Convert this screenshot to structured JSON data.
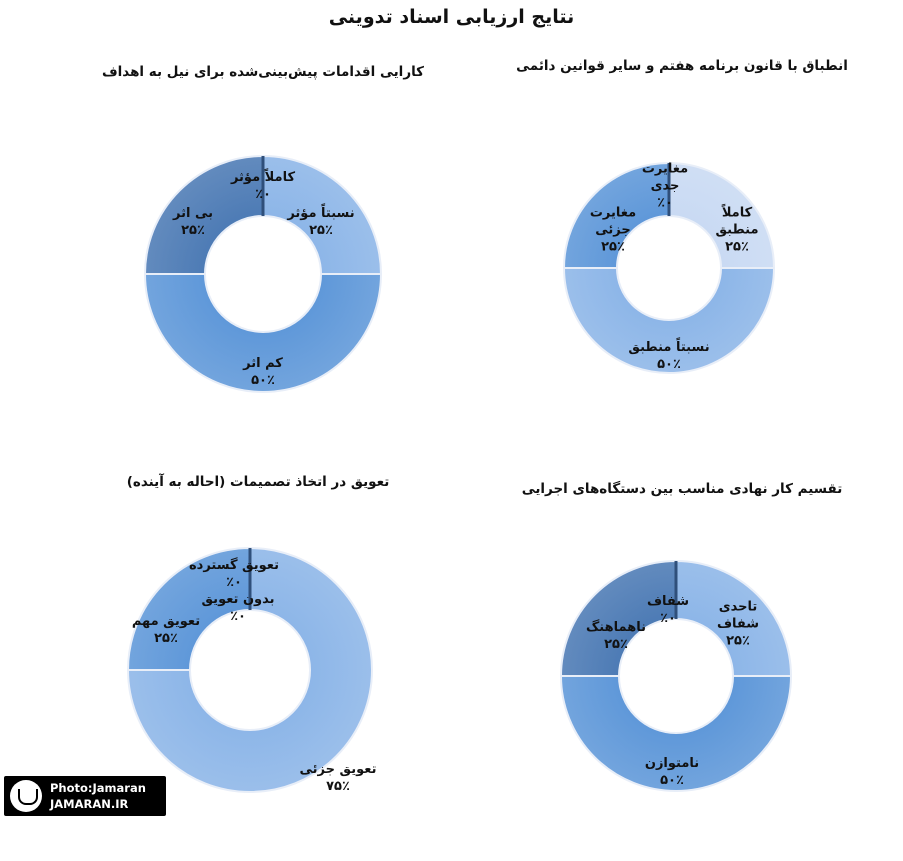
{
  "page": {
    "title": "نتایج ارزیابی اسناد تدوینی"
  },
  "watermark": {
    "line1": "Photo:Jamaran",
    "line2": "JAMARAN.IR"
  },
  "chart_data": [
    {
      "type": "pie",
      "variant": "donut",
      "title": "انطباق با قانون برنامه هفتم و سایر قوانین دائمی",
      "slices": [
        {
          "label": [
            "کاملاً",
            "منطبق"
          ],
          "percent_label": "۲۵٪",
          "value": 25,
          "color": "#c9daf3"
        },
        {
          "label": [
            "نسبتاً منطبق"
          ],
          "percent_label": "۵۰٪",
          "value": 50,
          "color": "#8db6e8"
        },
        {
          "label": [
            "مغایرت",
            "جزئی"
          ],
          "percent_label": "۲۵٪",
          "value": 25,
          "color": "#5f98d9"
        },
        {
          "label": [
            "مغایرت",
            "جدی"
          ],
          "percent_label": "٪۰",
          "value": 0,
          "color": "#2f4f7a"
        }
      ]
    },
    {
      "type": "pie",
      "variant": "donut",
      "title": "کارایی اقدامات پیش‌بینی‌شده برای نیل به اهداف",
      "slices": [
        {
          "label": [
            "نسبتاً مؤثر"
          ],
          "percent_label": "۲۵٪",
          "value": 25,
          "color": "#8db6e8"
        },
        {
          "label": [
            "کم اثر"
          ],
          "percent_label": "۵۰٪",
          "value": 50,
          "color": "#5f98d9"
        },
        {
          "label": [
            "بی اثر"
          ],
          "percent_label": "۲۵٪",
          "value": 25,
          "color": "#4d7bb5"
        },
        {
          "label": [
            "کاملاً مؤثر"
          ],
          "percent_label": "٪۰",
          "value": 0,
          "color": "#2f4f7a"
        }
      ]
    },
    {
      "type": "pie",
      "variant": "donut",
      "title": "تقسیم کار نهادی مناسب بین دستگاه‌های اجرایی",
      "slices": [
        {
          "label": [
            "تاحدی",
            "شفاف"
          ],
          "percent_label": "۲۵٪",
          "value": 25,
          "color": "#8db6e8"
        },
        {
          "label": [
            "نامتوازن"
          ],
          "percent_label": "۵۰٪",
          "value": 50,
          "color": "#5f98d9"
        },
        {
          "label": [
            "ناهماهنگ"
          ],
          "percent_label": "۲۵٪",
          "value": 25,
          "color": "#4d7bb5"
        },
        {
          "label": [
            "شفاف"
          ],
          "percent_label": "٪۰",
          "value": 0,
          "color": "#2f4f7a"
        }
      ]
    },
    {
      "type": "pie",
      "variant": "donut",
      "title": "تعویق در اتخاذ تصمیمات (احاله به آینده)",
      "slices": [
        {
          "label": [
            "بدون تعویق"
          ],
          "percent_label": "٪۰",
          "value": 0,
          "color": "#2f4f7a"
        },
        {
          "label": [
            "تعویق جزئی"
          ],
          "percent_label": "۷۵٪",
          "value": 75,
          "color": "#8db6e8"
        },
        {
          "label": [
            "تعویق مهم"
          ],
          "percent_label": "۲۵٪",
          "value": 25,
          "color": "#5f98d9"
        },
        {
          "label": [
            "تعویق گسترده"
          ],
          "percent_label": "٪۰",
          "value": 0,
          "color": "#2f4f7a"
        }
      ]
    }
  ]
}
